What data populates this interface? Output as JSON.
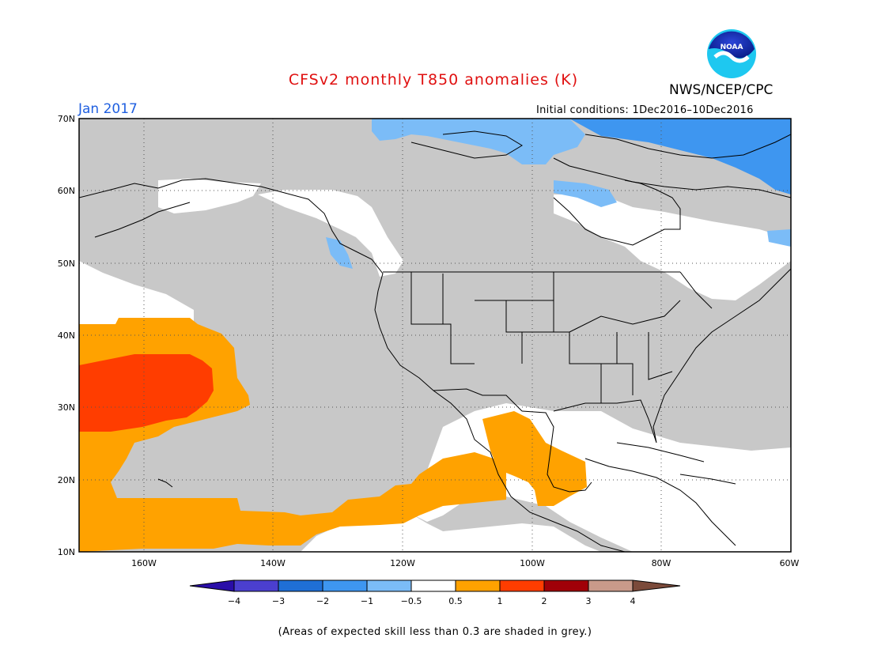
{
  "header": {
    "title": "CFSv2 monthly T850 anomalies (K)",
    "agency": "NWS/NCEP/CPC",
    "logo_text": "NOAA",
    "month": "Jan 2017",
    "initial_conditions": "Initial conditions: 1Dec2016–10Dec2016"
  },
  "axes": {
    "lat_labels": [
      "70N",
      "60N",
      "50N",
      "40N",
      "30N",
      "20N",
      "10N"
    ],
    "lon_labels": [
      "160W",
      "140W",
      "120W",
      "100W",
      "80W",
      "60W"
    ]
  },
  "colorbar": {
    "labels": [
      "−4",
      "−3",
      "−2",
      "−1",
      "−0.5",
      "0.5",
      "1",
      "2",
      "3",
      "4"
    ],
    "colors": [
      "#2a0ea8",
      "#4b3fcf",
      "#1f6fd6",
      "#3e96f0",
      "#7bbcf7",
      "#ffffff",
      "#ffa200",
      "#ff3d00",
      "#a00008",
      "#c99a8a",
      "#7b4a3a"
    ]
  },
  "footnote": "(Areas of expected skill less than 0.3 are shaded in grey.)"
}
